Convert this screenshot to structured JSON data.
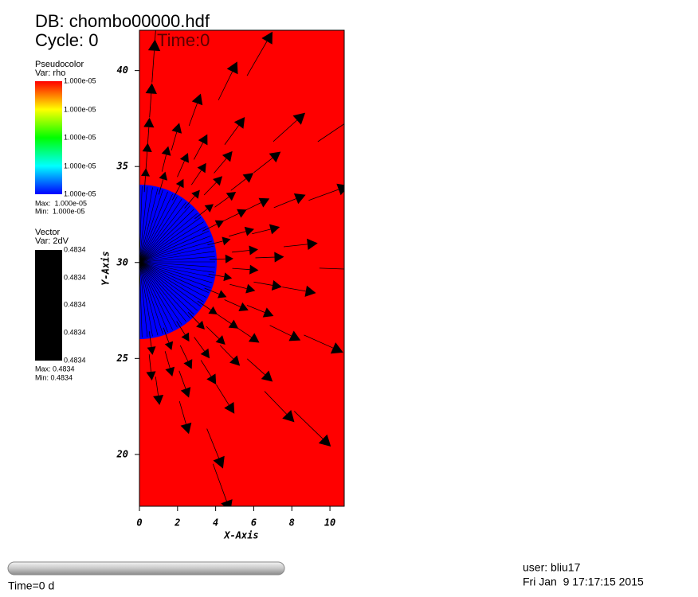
{
  "header": {
    "db": "DB: chombo00000.hdf",
    "cycle": "Cycle: 0",
    "time": "Time:0"
  },
  "legends": [
    {
      "title": "Pseudocolor",
      "var": "Var: rho",
      "labels": [
        "1.000e-05",
        "1.000e-05",
        "1.000e-05",
        "1.000e-05",
        "1.000e-05"
      ],
      "max": "Max:  1.000e-05",
      "min": "Min:  1.000e-05"
    },
    {
      "title": "Vector",
      "var": "Var: 2dV",
      "labels": [
        "0.4834",
        "0.4834",
        "0.4834",
        "0.4834",
        "0.4834"
      ],
      "max": "Max: 0.4834",
      "min": "Min: 0.4834"
    }
  ],
  "chart_data": {
    "type": "vector",
    "x_label": "X-Axis",
    "y_label": "Y-Axis",
    "xlim": [
      0,
      10.75
    ],
    "ylim": [
      17.3,
      42.1
    ],
    "xticks": [
      0,
      2,
      4,
      6,
      8,
      10
    ],
    "yticks": [
      20,
      25,
      30,
      35,
      40
    ],
    "background_color": "#ff0000",
    "inner_color": "#0000ff",
    "arrow_color": "#000000"
  },
  "footer": {
    "time": "Time=0 d",
    "user": "user: bliu17",
    "date": "Fri Jan  9 17:17:15 2015"
  }
}
